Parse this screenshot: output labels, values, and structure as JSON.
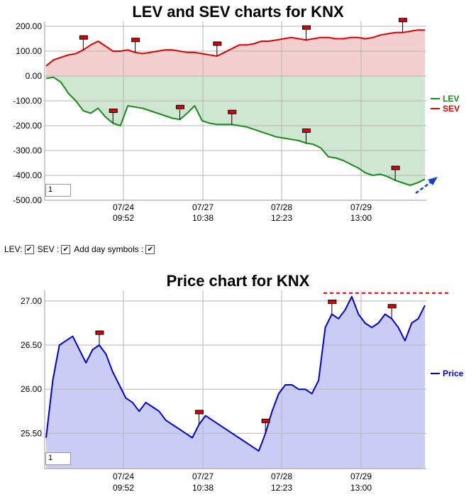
{
  "chart_data": [
    {
      "type": "area",
      "title": "LEV and SEV charts for KNX",
      "x_ticks": [
        {
          "date": "07/24",
          "time": "09:52"
        },
        {
          "date": "07/27",
          "time": "10:38"
        },
        {
          "date": "07/28",
          "time": "12:23"
        },
        {
          "date": "07/29",
          "time": "13:00"
        }
      ],
      "y_ticks": [
        "200.00",
        "100.00",
        "0.00",
        "-100.00",
        "-200.00",
        "-300.00",
        "-400.00",
        "-500.00"
      ],
      "ylim": [
        -500,
        220
      ],
      "legend_placement": "right",
      "grid": true,
      "series": [
        {
          "name": "LEV",
          "color": "#1a8a1a",
          "fill": "#cfe6d0",
          "values": [
            -10,
            -5,
            -25,
            -70,
            -100,
            -140,
            -150,
            -130,
            -165,
            -190,
            -200,
            -120,
            -125,
            -130,
            -140,
            -150,
            -160,
            -170,
            -175,
            -150,
            -120,
            -180,
            -190,
            -195,
            -195,
            -195,
            -200,
            -205,
            -215,
            -225,
            -235,
            -245,
            -250,
            -255,
            -260,
            -270,
            -275,
            -290,
            -325,
            -330,
            -340,
            -355,
            -370,
            -390,
            -400,
            -395,
            -405,
            -420,
            -430,
            -440,
            -430,
            -415
          ]
        },
        {
          "name": "SEV",
          "color": "#e00000",
          "fill": "#f4cfcf",
          "values": [
            40,
            65,
            75,
            85,
            90,
            105,
            125,
            140,
            120,
            100,
            100,
            105,
            95,
            90,
            95,
            100,
            105,
            105,
            100,
            95,
            95,
            90,
            85,
            80,
            95,
            110,
            125,
            125,
            130,
            140,
            140,
            145,
            150,
            155,
            150,
            145,
            150,
            155,
            155,
            150,
            150,
            155,
            155,
            150,
            155,
            165,
            170,
            175,
            175,
            180,
            185,
            185
          ]
        }
      ],
      "day_symbols": [
        {
          "series": "SEV",
          "index": 5
        },
        {
          "series": "SEV",
          "index": 12
        },
        {
          "series": "SEV",
          "index": 23
        },
        {
          "series": "SEV",
          "index": 35
        },
        {
          "series": "SEV",
          "index": 48
        },
        {
          "series": "LEV",
          "index": 9
        },
        {
          "series": "LEV",
          "index": 18
        },
        {
          "series": "LEV",
          "index": 25
        },
        {
          "series": "LEV",
          "index": 35
        },
        {
          "series": "LEV",
          "index": 47
        }
      ],
      "zoom_value": "1"
    },
    {
      "type": "area",
      "title": "Price chart for KNX",
      "x_ticks": [
        {
          "date": "07/24",
          "time": "09:52"
        },
        {
          "date": "07/27",
          "time": "10:38"
        },
        {
          "date": "07/28",
          "time": "12:23"
        },
        {
          "date": "07/29",
          "time": "13:00"
        }
      ],
      "y_ticks": [
        "27.00",
        "26.50",
        "26.00",
        "25.50"
      ],
      "ylim": [
        25.1,
        27.12
      ],
      "legend_placement": "right",
      "grid": true,
      "series": [
        {
          "name": "Price",
          "color": "#0000d0",
          "fill": "#c9cdf5",
          "values": [
            25.45,
            26.1,
            26.5,
            26.55,
            26.6,
            26.45,
            26.3,
            26.45,
            26.5,
            26.4,
            26.2,
            26.05,
            25.9,
            25.85,
            25.75,
            25.85,
            25.8,
            25.75,
            25.65,
            25.6,
            25.55,
            25.5,
            25.45,
            25.6,
            25.7,
            25.65,
            25.6,
            25.55,
            25.5,
            25.45,
            25.4,
            25.35,
            25.3,
            25.5,
            25.75,
            25.95,
            26.05,
            26.05,
            26.0,
            26.0,
            25.95,
            26.1,
            26.7,
            26.85,
            26.8,
            26.9,
            27.05,
            26.85,
            26.75,
            26.7,
            26.75,
            26.85,
            26.8,
            26.7,
            26.55,
            26.75,
            26.8,
            26.95
          ]
        }
      ],
      "day_symbols": [
        {
          "series": "Price",
          "index": 8
        },
        {
          "series": "Price",
          "index": 23
        },
        {
          "series": "Price",
          "index": 33
        },
        {
          "series": "Price",
          "index": 43
        },
        {
          "series": "Price",
          "index": 52
        }
      ],
      "resistance_line": 27.09,
      "zoom_value": "1"
    }
  ],
  "options": {
    "lev_label": "LEV:",
    "sev_label": "SEV :",
    "day_symbols_label": "Add day symbols :",
    "lev_checked": true,
    "sev_checked": true,
    "day_symbols_checked": true
  }
}
